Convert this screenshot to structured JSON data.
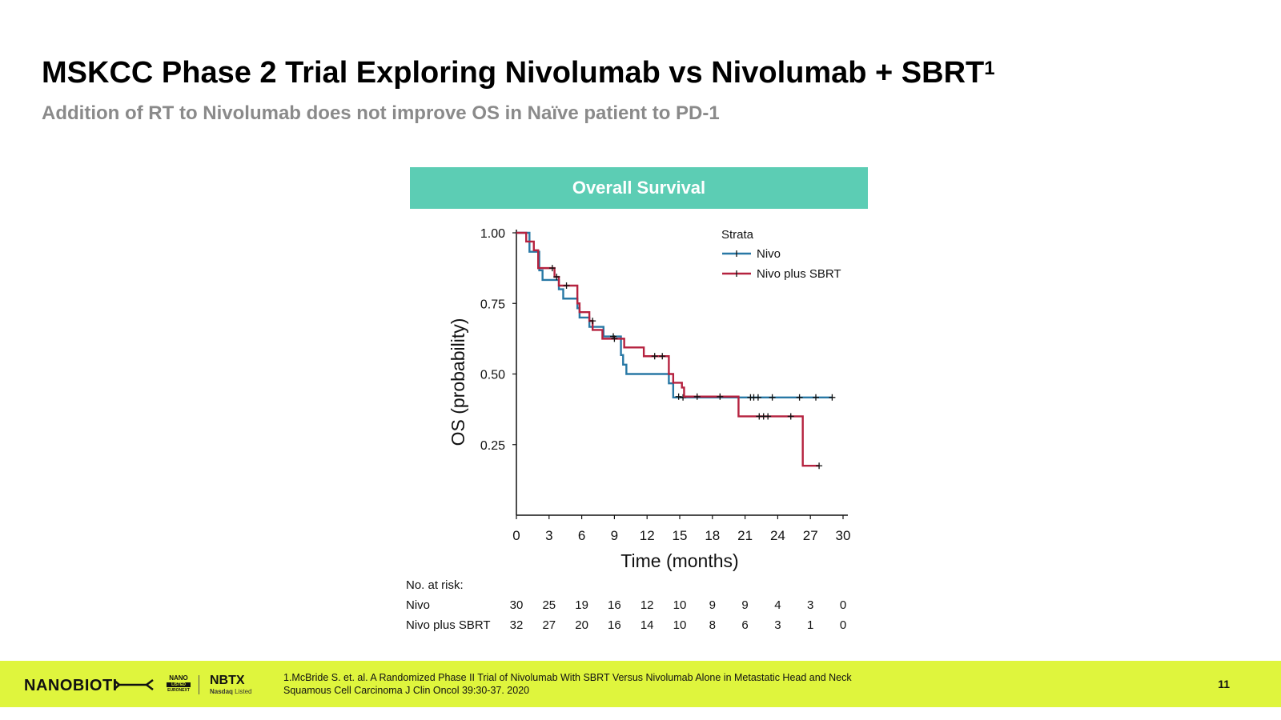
{
  "slide": {
    "title": "MSKCC Phase 2 Trial Exploring Nivolumab vs Nivolumab + SBRT",
    "title_superscript": "1",
    "subtitle": "Addition of RT to Nivolumab does not improve OS in Naïve patient to PD-1",
    "chart_header": "Overall Survival",
    "header_color": "#5ccdb4"
  },
  "chart_data": {
    "type": "line",
    "step": true,
    "xlabel": "Time (months)",
    "ylabel": "OS (probability)",
    "xlim": [
      0,
      30
    ],
    "ylim": [
      0,
      1
    ],
    "x_ticks": [
      0,
      3,
      6,
      9,
      12,
      15,
      18,
      21,
      24,
      27,
      30
    ],
    "y_ticks": [
      0.25,
      0.5,
      0.75,
      1.0
    ],
    "y_tick_labels": [
      "0.25",
      "0.50",
      "0.75",
      "1.00"
    ],
    "legend_title": "Strata",
    "legend_position": "top-right",
    "grid": false,
    "series": [
      {
        "name": "Nivo",
        "color": "#2878a5",
        "steps": [
          [
            0,
            1.0
          ],
          [
            1.2,
            0.933
          ],
          [
            2.1,
            0.867
          ],
          [
            2.4,
            0.833
          ],
          [
            3.9,
            0.8
          ],
          [
            4.3,
            0.767
          ],
          [
            5.6,
            0.733
          ],
          [
            5.8,
            0.7
          ],
          [
            6.7,
            0.667
          ],
          [
            8.0,
            0.633
          ],
          [
            9.6,
            0.567
          ],
          [
            9.8,
            0.533
          ],
          [
            10.1,
            0.5
          ],
          [
            14.0,
            0.467
          ],
          [
            14.4,
            0.417
          ],
          [
            29.0,
            0.417
          ]
        ],
        "censored": [
          [
            8.9,
            0.633
          ],
          [
            15.3,
            0.417
          ],
          [
            21.5,
            0.417
          ],
          [
            21.8,
            0.417
          ],
          [
            22.2,
            0.417
          ],
          [
            23.5,
            0.417
          ],
          [
            26.0,
            0.417
          ],
          [
            27.5,
            0.417
          ],
          [
            29.0,
            0.417
          ]
        ]
      },
      {
        "name": "Nivo plus SBRT",
        "color": "#b5223f",
        "steps": [
          [
            0,
            1.0
          ],
          [
            0.9,
            0.969
          ],
          [
            1.6,
            0.938
          ],
          [
            2.0,
            0.875
          ],
          [
            3.5,
            0.844
          ],
          [
            3.9,
            0.813
          ],
          [
            5.6,
            0.75
          ],
          [
            5.8,
            0.719
          ],
          [
            6.7,
            0.688
          ],
          [
            7.0,
            0.656
          ],
          [
            7.9,
            0.625
          ],
          [
            9.9,
            0.594
          ],
          [
            11.7,
            0.563
          ],
          [
            14.0,
            0.5
          ],
          [
            14.4,
            0.469
          ],
          [
            15.2,
            0.452
          ],
          [
            15.4,
            0.42
          ],
          [
            20.3,
            0.42
          ],
          [
            20.4,
            0.35
          ],
          [
            26.2,
            0.35
          ],
          [
            26.3,
            0.175
          ],
          [
            27.8,
            0.175
          ]
        ],
        "censored": [
          [
            3.3,
            0.875
          ],
          [
            3.7,
            0.844
          ],
          [
            4.6,
            0.813
          ],
          [
            7.0,
            0.688
          ],
          [
            9.0,
            0.625
          ],
          [
            12.7,
            0.563
          ],
          [
            13.4,
            0.563
          ],
          [
            14.9,
            0.42
          ],
          [
            16.6,
            0.42
          ],
          [
            18.7,
            0.42
          ],
          [
            22.3,
            0.35
          ],
          [
            22.7,
            0.35
          ],
          [
            23.1,
            0.35
          ],
          [
            25.2,
            0.35
          ],
          [
            27.8,
            0.175
          ]
        ]
      }
    ],
    "risk_table": {
      "title": "No. at risk:",
      "times": [
        0,
        3,
        6,
        9,
        12,
        15,
        18,
        21,
        24,
        27,
        30
      ],
      "rows": [
        {
          "label": "Nivo",
          "counts": [
            30,
            25,
            19,
            16,
            12,
            10,
            9,
            9,
            4,
            3,
            0
          ]
        },
        {
          "label": "Nivo plus SBRT",
          "counts": [
            32,
            27,
            20,
            16,
            14,
            10,
            8,
            6,
            3,
            1,
            0
          ]
        }
      ]
    }
  },
  "footer": {
    "logo_text": "NANOBIOTI",
    "badge_top": "NANO",
    "badge_mid": "LISTED",
    "badge_bottom": "EURONEXT",
    "ticker": "NBTX",
    "ticker_sub_bold": "Nasdaq",
    "ticker_sub": " Listed",
    "reference_line1": "1.McBride S. et. al. A Randomized Phase II Trial of Nivolumab With SBRT Versus Nivolumab Alone in Metastatic Head and Neck",
    "reference_line2": "Squamous Cell Carcinoma J Clin Oncol 39:30-37. 2020",
    "page_number": "11",
    "footer_color": "#dff53d"
  }
}
